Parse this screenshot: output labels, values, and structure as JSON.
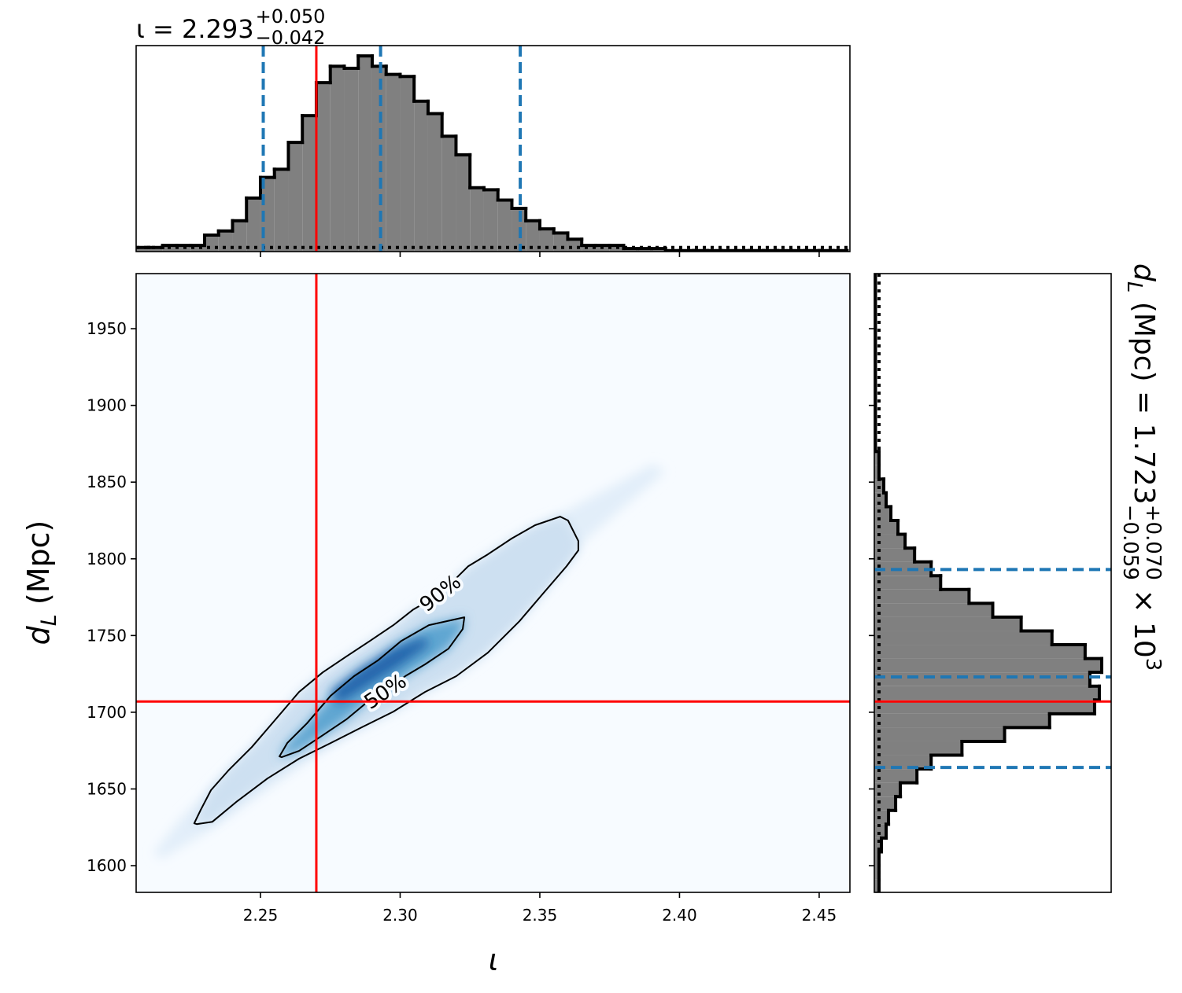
{
  "chart_data": [
    {
      "type": "histogram",
      "orientation": "vertical",
      "title": {
        "text": "ι = 2.293",
        "sup": "+0.050",
        "sub": "−0.042"
      },
      "bins": [
        2.205,
        2.21,
        2.215,
        2.22,
        2.225,
        2.23,
        2.235,
        2.24,
        2.245,
        2.25,
        2.255,
        2.26,
        2.265,
        2.27,
        2.275,
        2.28,
        2.285,
        2.29,
        2.295,
        2.3,
        2.305,
        2.31,
        2.315,
        2.32,
        2.325,
        2.33,
        2.335,
        2.34,
        2.345,
        2.35,
        2.355,
        2.36,
        2.365,
        2.37,
        2.375,
        2.38,
        2.385,
        2.39,
        2.395,
        2.4,
        2.405,
        2.41,
        2.415,
        2.42,
        2.425,
        2.43,
        2.435,
        2.44,
        2.445,
        2.45,
        2.455,
        2.46
      ],
      "values": [
        0.02,
        0.02,
        0.03,
        0.03,
        0.03,
        0.08,
        0.1,
        0.15,
        0.26,
        0.36,
        0.4,
        0.53,
        0.66,
        0.82,
        0.9,
        0.89,
        0.95,
        0.9,
        0.86,
        0.85,
        0.73,
        0.67,
        0.56,
        0.47,
        0.31,
        0.3,
        0.25,
        0.21,
        0.15,
        0.11,
        0.09,
        0.06,
        0.03,
        0.03,
        0.03,
        0.015,
        0.015,
        0.015,
        0.005,
        0.005,
        0.005,
        0.005,
        0.005,
        0.005,
        0.005,
        0.005,
        0.005,
        0.005,
        0.005,
        0.005,
        0.005
      ],
      "color": "#808080",
      "edgecolor": "#000000",
      "xlim": [
        2.2055,
        2.461
      ],
      "ylim": [
        0,
        1
      ],
      "xticks": [
        2.25,
        2.3,
        2.35,
        2.4,
        2.45
      ],
      "quantiles": [
        2.251,
        2.293,
        2.343
      ],
      "quantile_color": "#1f77b4",
      "truth": 2.27,
      "truth_color": "#ff0000",
      "prior_level": 0.02
    },
    {
      "type": "density2d",
      "x_label": "ι",
      "y_label": {
        "text": "d",
        "sub": "L",
        "rest": " (Mpc)"
      },
      "xlim": [
        2.2055,
        2.461
      ],
      "ylim": [
        1582.6,
        1985.9
      ],
      "xticks": [
        2.25,
        {
          "value": 2.3,
          "label": "2.30"
        },
        2.35,
        {
          "value": 2.4,
          "label": "2.40"
        },
        2.45
      ],
      "yticks": [
        1600,
        1650,
        1700,
        1750,
        1800,
        1850,
        1900,
        1950
      ],
      "background": "#f7fbff",
      "regions": [
        {
          "label": null,
          "color": "#e2eef9",
          "line": false,
          "x": [
            2.2117,
            2.2216,
            2.2413,
            2.2694,
            2.2976,
            2.3258,
            2.354,
            2.3906,
            2.3948,
            2.3652,
            2.3399,
            2.3145,
            2.2863,
            2.2582,
            2.23,
            2.2145
          ],
          "y": [
            1608.1,
            1631.2,
            1667.1,
            1708.1,
            1744,
            1785,
            1826,
            1861.9,
            1856.7,
            1810.6,
            1759.3,
            1723.5,
            1692.7,
            1656.8,
            1621,
            1604.6
          ]
        },
        {
          "label": "90%",
          "color": "#cde0f1",
          "line": true,
          "x": [
            2.2263,
            2.2286,
            2.2323,
            2.2385,
            2.2469,
            2.2554,
            2.2638,
            2.2723,
            2.2807,
            2.2892,
            2.2976,
            2.3047,
            2.3145,
            2.3244,
            2.3314,
            2.3399,
            2.3483,
            2.3573,
            2.3601,
            2.3638,
            2.3638,
            2.3596,
            2.3511,
            2.3427,
            2.3314,
            2.3201,
            2.3089,
            2.2976,
            2.2863,
            2.2751,
            2.2638,
            2.2525,
            2.2413,
            2.2328,
            2.2272
          ],
          "y": [
            1627.6,
            1636.3,
            1649.2,
            1662,
            1677.3,
            1695.3,
            1713.2,
            1726,
            1736.3,
            1746.5,
            1756.8,
            1767,
            1777.3,
            1795.2,
            1802.9,
            1813.2,
            1821.9,
            1827.5,
            1825,
            1811.6,
            1805.5,
            1795.2,
            1777.3,
            1759.3,
            1738.8,
            1723.5,
            1713.2,
            1700.4,
            1690.2,
            1679.9,
            1669.7,
            1656.8,
            1641.5,
            1628.6,
            1627.1
          ]
        },
        {
          "label": "50%",
          "color": "#5fa6d1",
          "line": true,
          "x": [
            2.2568,
            2.2596,
            2.2666,
            2.2751,
            2.2835,
            2.292,
            2.3004,
            2.3103,
            2.323,
            2.3224,
            2.3173,
            2.3089,
            2.3018,
            2.2948,
            2.2892,
            2.2807,
            2.2723,
            2.2638,
            2.2576
          ],
          "y": [
            1671.2,
            1679.9,
            1692.7,
            1710.7,
            1723.5,
            1733.7,
            1746.5,
            1756.8,
            1761.9,
            1754.2,
            1741.4,
            1731.2,
            1723.5,
            1713.2,
            1708.1,
            1695.3,
            1685,
            1674.8,
            1670.7
          ]
        },
        {
          "label": null,
          "color": "#2064ab",
          "line": false,
          "x": [
            2.2751,
            2.2863,
            2.2976,
            2.3089,
            2.3103,
            2.3004,
            2.2892,
            2.2779
          ],
          "y": [
            1713.2,
            1728.6,
            1741.4,
            1749.1,
            1744,
            1731.2,
            1718.3,
            1705.5
          ]
        }
      ],
      "contour_color": "#000000",
      "truth": {
        "x": 2.27,
        "y": 1707
      },
      "truth_color": "#ff0000"
    },
    {
      "type": "histogram",
      "orientation": "horizontal",
      "title": {
        "text": "d",
        "sub": "L",
        "rest": " (Mpc) = 1.723",
        "sup": "+0.070",
        "sub2": "−0.059",
        "times": " × 10",
        "exp": "3"
      },
      "bins": [
        1582,
        1591,
        1600,
        1609,
        1618,
        1627,
        1636,
        1645,
        1654,
        1663,
        1672,
        1681,
        1690,
        1699,
        1708,
        1717,
        1726,
        1735,
        1744,
        1753,
        1762,
        1771,
        1780,
        1789,
        1798,
        1807,
        1816,
        1825,
        1834,
        1843,
        1852,
        1861,
        1870,
        1879,
        1888,
        1897,
        1906,
        1915,
        1924,
        1933,
        1942,
        1951,
        1960,
        1969,
        1978,
        1987
      ],
      "values": [
        0.02,
        0.02,
        0.02,
        0.03,
        0.05,
        0.06,
        0.09,
        0.11,
        0.18,
        0.24,
        0.37,
        0.55,
        0.74,
        0.93,
        0.95,
        0.91,
        0.96,
        0.89,
        0.75,
        0.62,
        0.5,
        0.4,
        0.28,
        0.24,
        0.17,
        0.13,
        0.1,
        0.07,
        0.05,
        0.04,
        0.02,
        0.02,
        0.005,
        0.005,
        0.005,
        0.005,
        0.005,
        0.005,
        0.005,
        0.005,
        0.005,
        0.005,
        0.005,
        0.005,
        0.005
      ],
      "color": "#808080",
      "edgecolor": "#000000",
      "xlim": [
        0,
        1
      ],
      "ylim": [
        1582.6,
        1985.9
      ],
      "yticks": [
        1600,
        1650,
        1700,
        1750,
        1800,
        1850,
        1900,
        1950
      ],
      "quantiles": [
        1664,
        1723,
        1793
      ],
      "quantile_color": "#1f77b4",
      "truth": 1707,
      "truth_color": "#ff0000",
      "prior_level": 0.02
    }
  ]
}
